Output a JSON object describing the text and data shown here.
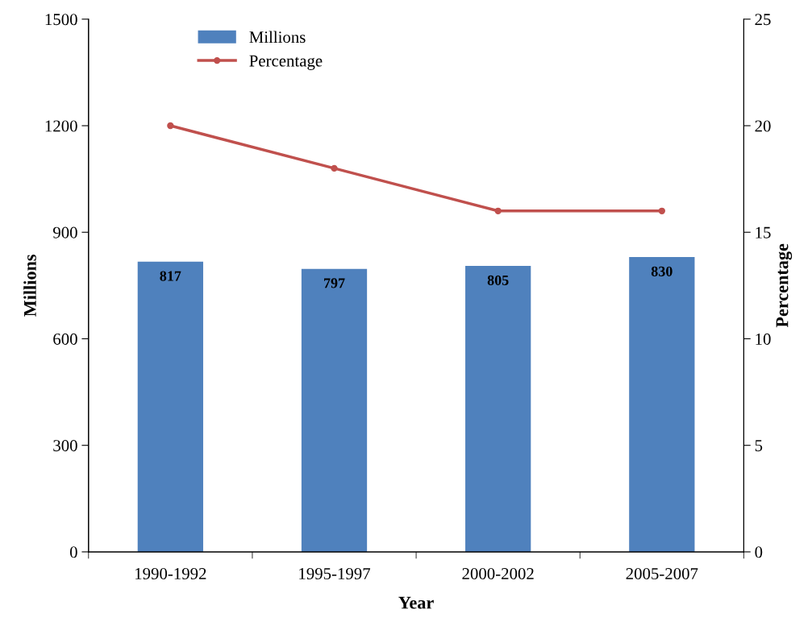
{
  "chart_data": {
    "type": "bar",
    "xlabel": "Year",
    "ylabel": "Millions",
    "y2label": "Percentage",
    "categories": [
      "1990-1992",
      "1995-1997",
      "2000-2002",
      "2005-2007"
    ],
    "series": [
      {
        "name": "Millions",
        "color": "#4f81bd",
        "values": [
          817,
          797,
          805,
          830
        ],
        "value_labels": [
          "817",
          "797",
          "805",
          "830"
        ]
      },
      {
        "name": "Percentage",
        "type": "line",
        "axis": "y2",
        "color": "#c0504d",
        "marker": "circle",
        "values": [
          20,
          18,
          16,
          16
        ]
      }
    ],
    "ylim": [
      0,
      1500
    ],
    "yticks": [
      0,
      300,
      600,
      900,
      1200,
      1500
    ],
    "y2lim": [
      0,
      25
    ],
    "y2ticks": [
      0,
      5,
      10,
      15,
      20,
      25
    ],
    "grid": false,
    "legend": "top left"
  }
}
